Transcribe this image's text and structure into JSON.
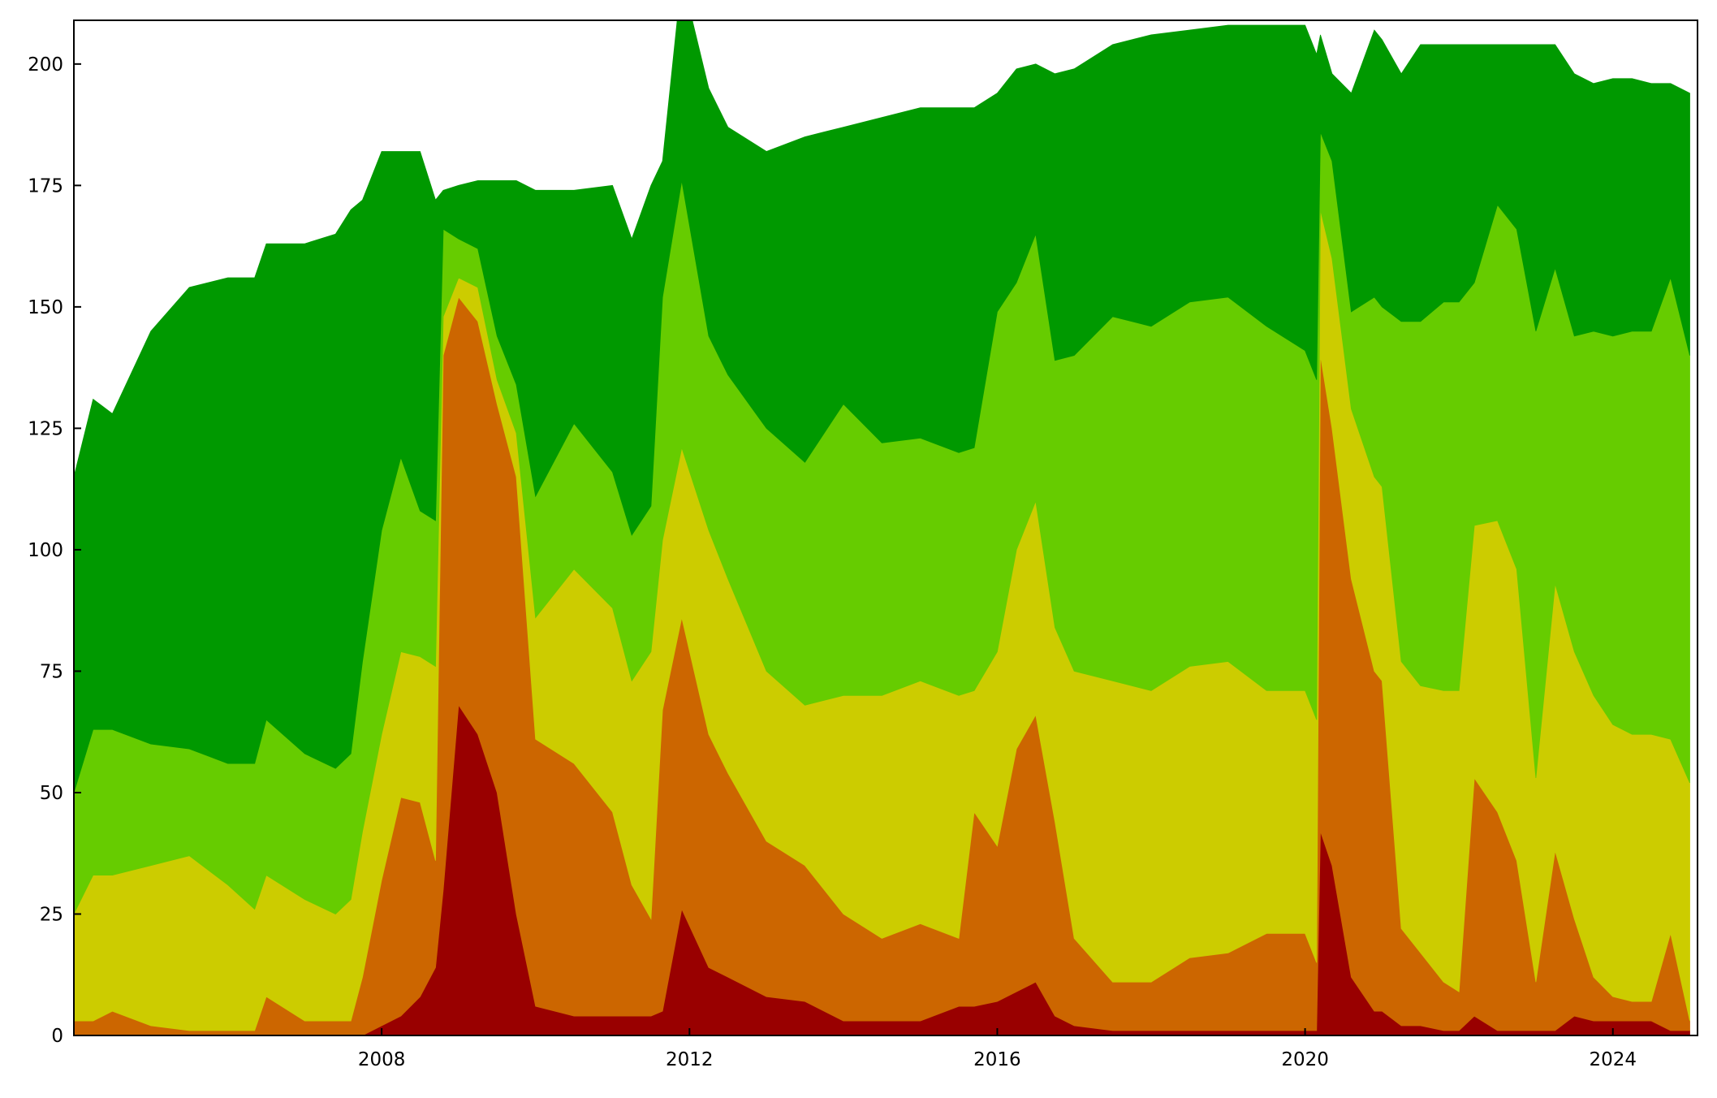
{
  "chart_data": {
    "type": "area",
    "stacked": true,
    "title": "",
    "xlabel": "",
    "ylabel": "",
    "xlim": [
      2004.0,
      2025.1
    ],
    "ylim": [
      0,
      209
    ],
    "x_ticks": [
      2008,
      2012,
      2016,
      2020,
      2024
    ],
    "x_tick_labels": [
      "2008",
      "2012",
      "2016",
      "2020",
      "2024"
    ],
    "y_ticks": [
      0,
      25,
      50,
      75,
      100,
      125,
      150,
      175,
      200
    ],
    "y_tick_labels": [
      "0",
      "25",
      "50",
      "75",
      "100",
      "125",
      "150",
      "175",
      "200"
    ],
    "grid": false,
    "legend": "none",
    "x": [
      2004.0,
      2004.25,
      2004.5,
      2005.0,
      2005.5,
      2006.0,
      2006.35,
      2006.5,
      2007.0,
      2007.4,
      2007.6,
      2007.75,
      2008.0,
      2008.25,
      2008.5,
      2008.7,
      2008.8,
      2009.0,
      2009.25,
      2009.5,
      2009.75,
      2010.0,
      2010.5,
      2011.0,
      2011.25,
      2011.5,
      2011.65,
      2011.9,
      2012.25,
      2012.5,
      2013.0,
      2013.5,
      2014.0,
      2014.5,
      2015.0,
      2015.5,
      2015.7,
      2016.0,
      2016.25,
      2016.5,
      2016.75,
      2017.0,
      2017.5,
      2018.0,
      2018.5,
      2019.0,
      2019.5,
      2020.0,
      2020.15,
      2020.2,
      2020.35,
      2020.6,
      2020.9,
      2021.0,
      2021.25,
      2021.5,
      2021.8,
      2022.0,
      2022.2,
      2022.5,
      2022.75,
      2023.0,
      2023.25,
      2023.5,
      2023.75,
      2024.0,
      2024.25,
      2024.5,
      2024.75,
      2025.0
    ],
    "series": [
      {
        "color": "#990000",
        "values": [
          0,
          0,
          0,
          0,
          0,
          0,
          0,
          0,
          0,
          0,
          0,
          0,
          2,
          4,
          8,
          14,
          30,
          68,
          62,
          50,
          25,
          6,
          4,
          4,
          4,
          4,
          5,
          26,
          14,
          12,
          8,
          7,
          3,
          3,
          3,
          6,
          6,
          7,
          9,
          11,
          4,
          2,
          1,
          1,
          1,
          1,
          1,
          1,
          1,
          42,
          35,
          12,
          5,
          5,
          2,
          2,
          1,
          1,
          4,
          1,
          1,
          1,
          1,
          4,
          3,
          3,
          3,
          3,
          1,
          1
        ]
      },
      {
        "color": "#cc6600",
        "values": [
          3,
          3,
          5,
          2,
          1,
          1,
          1,
          8,
          3,
          3,
          3,
          12,
          30,
          45,
          40,
          22,
          110,
          84,
          85,
          80,
          90,
          55,
          52,
          42,
          27,
          20,
          62,
          60,
          48,
          42,
          32,
          28,
          22,
          17,
          20,
          14,
          40,
          32,
          50,
          55,
          40,
          18,
          10,
          10,
          15,
          16,
          20,
          20,
          14,
          98,
          90,
          82,
          70,
          68,
          20,
          15,
          10,
          8,
          49,
          45,
          35,
          10,
          37,
          20,
          9,
          5,
          4,
          4,
          20,
          2
        ]
      },
      {
        "color": "#cccc00",
        "values": [
          22,
          30,
          28,
          33,
          36,
          30,
          25,
          25,
          25,
          22,
          25,
          30,
          30,
          30,
          30,
          40,
          8,
          4,
          7,
          5,
          9,
          25,
          40,
          42,
          42,
          55,
          35,
          35,
          42,
          40,
          35,
          33,
          45,
          50,
          50,
          50,
          25,
          40,
          41,
          44,
          40,
          55,
          62,
          60,
          60,
          60,
          50,
          50,
          50,
          30,
          35,
          35,
          40,
          40,
          55,
          55,
          60,
          62,
          52,
          60,
          60,
          42,
          55,
          55,
          58,
          56,
          55,
          55,
          40,
          49
        ]
      },
      {
        "color": "#66cc00",
        "values": [
          25,
          30,
          30,
          25,
          22,
          25,
          30,
          32,
          30,
          30,
          30,
          35,
          42,
          40,
          30,
          30,
          18,
          8,
          8,
          9,
          10,
          25,
          30,
          28,
          30,
          30,
          50,
          55,
          40,
          42,
          50,
          50,
          60,
          52,
          50,
          50,
          50,
          70,
          55,
          55,
          55,
          65,
          75,
          75,
          75,
          75,
          75,
          70,
          70,
          16,
          20,
          20,
          37,
          37,
          70,
          75,
          80,
          80,
          50,
          65,
          70,
          92,
          65,
          65,
          75,
          80,
          83,
          83,
          95,
          88
        ]
      },
      {
        "color": "#009900",
        "values": [
          65,
          68,
          65,
          85,
          95,
          100,
          100,
          98,
          105,
          110,
          112,
          95,
          78,
          63,
          74,
          66,
          8,
          11,
          14,
          32,
          42,
          63,
          48,
          59,
          61,
          66,
          28,
          42,
          51,
          51,
          57,
          67,
          57,
          67,
          68,
          71,
          70,
          45,
          44,
          35,
          59,
          59,
          56,
          60,
          56,
          56,
          62,
          67,
          67,
          20,
          18,
          45,
          55,
          55,
          51,
          57,
          53,
          53,
          49,
          33,
          38,
          59,
          46,
          54,
          51,
          53,
          52,
          51,
          40,
          54
        ]
      }
    ]
  }
}
